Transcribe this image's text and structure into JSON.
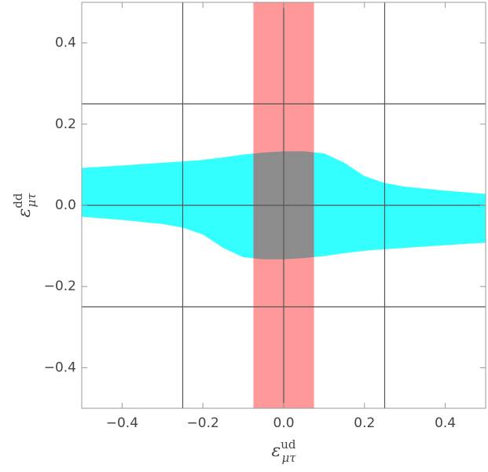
{
  "chart_data": {
    "type": "region",
    "xlabel": {
      "symbol": "ε",
      "sub": "μτ",
      "sup": "ud"
    },
    "ylabel": {
      "symbol": "ε",
      "sub": "μτ",
      "sup": "dd"
    },
    "xlim": [
      -0.5,
      0.5
    ],
    "ylim": [
      -0.5,
      0.5
    ],
    "xticks": [
      {
        "value": -0.4,
        "label": "−0.4"
      },
      {
        "value": -0.2,
        "label": "−0.2"
      },
      {
        "value": 0,
        "label": "0.0"
      },
      0.2,
      0.4
    ],
    "yticks": [
      {
        "value": -0.4,
        "label": "−0.4"
      },
      {
        "value": -0.2,
        "label": "−0.2"
      },
      {
        "value": 0,
        "label": "0.0"
      },
      0.2,
      0.4
    ],
    "gridlines": {
      "x": [
        -0.25,
        0,
        0.25
      ],
      "y": [
        -0.25,
        0,
        0.25
      ],
      "color": "#555555"
    },
    "region": {
      "color": "#33ffff",
      "x": [
        -0.5,
        -0.4,
        -0.3,
        -0.25,
        -0.2,
        -0.15,
        -0.1,
        -0.05,
        0,
        0.05,
        0.1,
        0.15,
        0.2,
        0.25,
        0.3,
        0.4,
        0.5
      ],
      "upper": [
        0.092,
        0.098,
        0.105,
        0.108,
        0.112,
        0.118,
        0.125,
        0.13,
        0.133,
        0.133,
        0.128,
        0.105,
        0.072,
        0.055,
        0.046,
        0.036,
        0.028
      ],
      "lower": [
        -0.028,
        -0.036,
        -0.046,
        -0.055,
        -0.072,
        -0.105,
        -0.128,
        -0.133,
        -0.133,
        -0.13,
        -0.125,
        -0.118,
        -0.112,
        -0.108,
        -0.105,
        -0.098,
        -0.092
      ]
    },
    "band": {
      "color": "#ff9999",
      "xlim": [
        -0.075,
        0.075
      ],
      "ylim": [
        -0.5,
        0.5
      ]
    },
    "overlap_color": "#8c8c8c"
  }
}
